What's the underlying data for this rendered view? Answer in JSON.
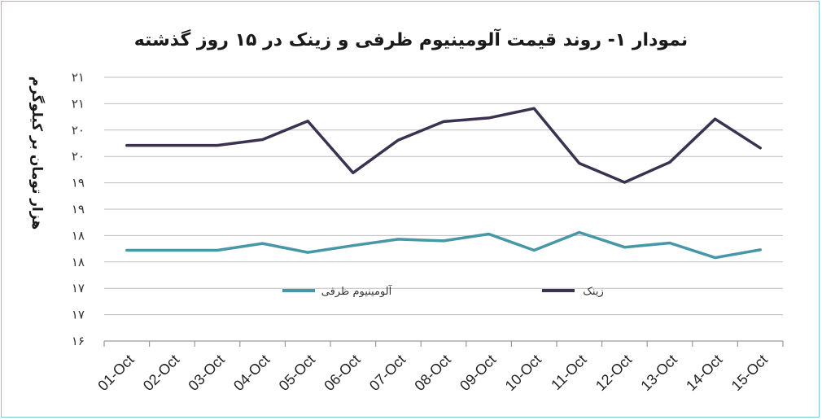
{
  "chart_data": {
    "type": "line",
    "title": "نمودار ۱- روند قیمت آلومینیوم ظرفی و زینک در ۱۵ روز گذشته",
    "ylabel": "هزار تومان بر کیلوگرم",
    "xlabel": "",
    "categories": [
      "01-Oct",
      "02-Oct",
      "03-Oct",
      "04-Oct",
      "05-Oct",
      "06-Oct",
      "07-Oct",
      "08-Oct",
      "09-Oct",
      "10-Oct",
      "11-Oct",
      "12-Oct",
      "13-Oct",
      "14-Oct",
      "15-Oct"
    ],
    "ytick_labels": [
      "۱۶",
      "۱۷",
      "۱۷",
      "۱۸",
      "۱۸",
      "۱۹",
      "۱۹",
      "۲۰",
      "۲۰",
      "۲۱",
      "۲۱"
    ],
    "ylim": [
      16,
      21
    ],
    "grid": true,
    "legend_position": "center",
    "series": [
      {
        "name": "آلومینیوم ظرفی",
        "color": "#4797a7",
        "values": [
          17.72,
          17.72,
          17.72,
          17.85,
          17.68,
          17.81,
          17.93,
          17.9,
          18.03,
          17.72,
          18.06,
          17.78,
          17.86,
          17.58,
          17.73
        ]
      },
      {
        "name": "زینک",
        "color": "#3b3150",
        "values": [
          19.71,
          19.71,
          19.71,
          19.82,
          20.17,
          19.19,
          19.81,
          20.16,
          20.23,
          20.41,
          19.37,
          19.01,
          19.39,
          20.21,
          19.66
        ]
      }
    ]
  }
}
